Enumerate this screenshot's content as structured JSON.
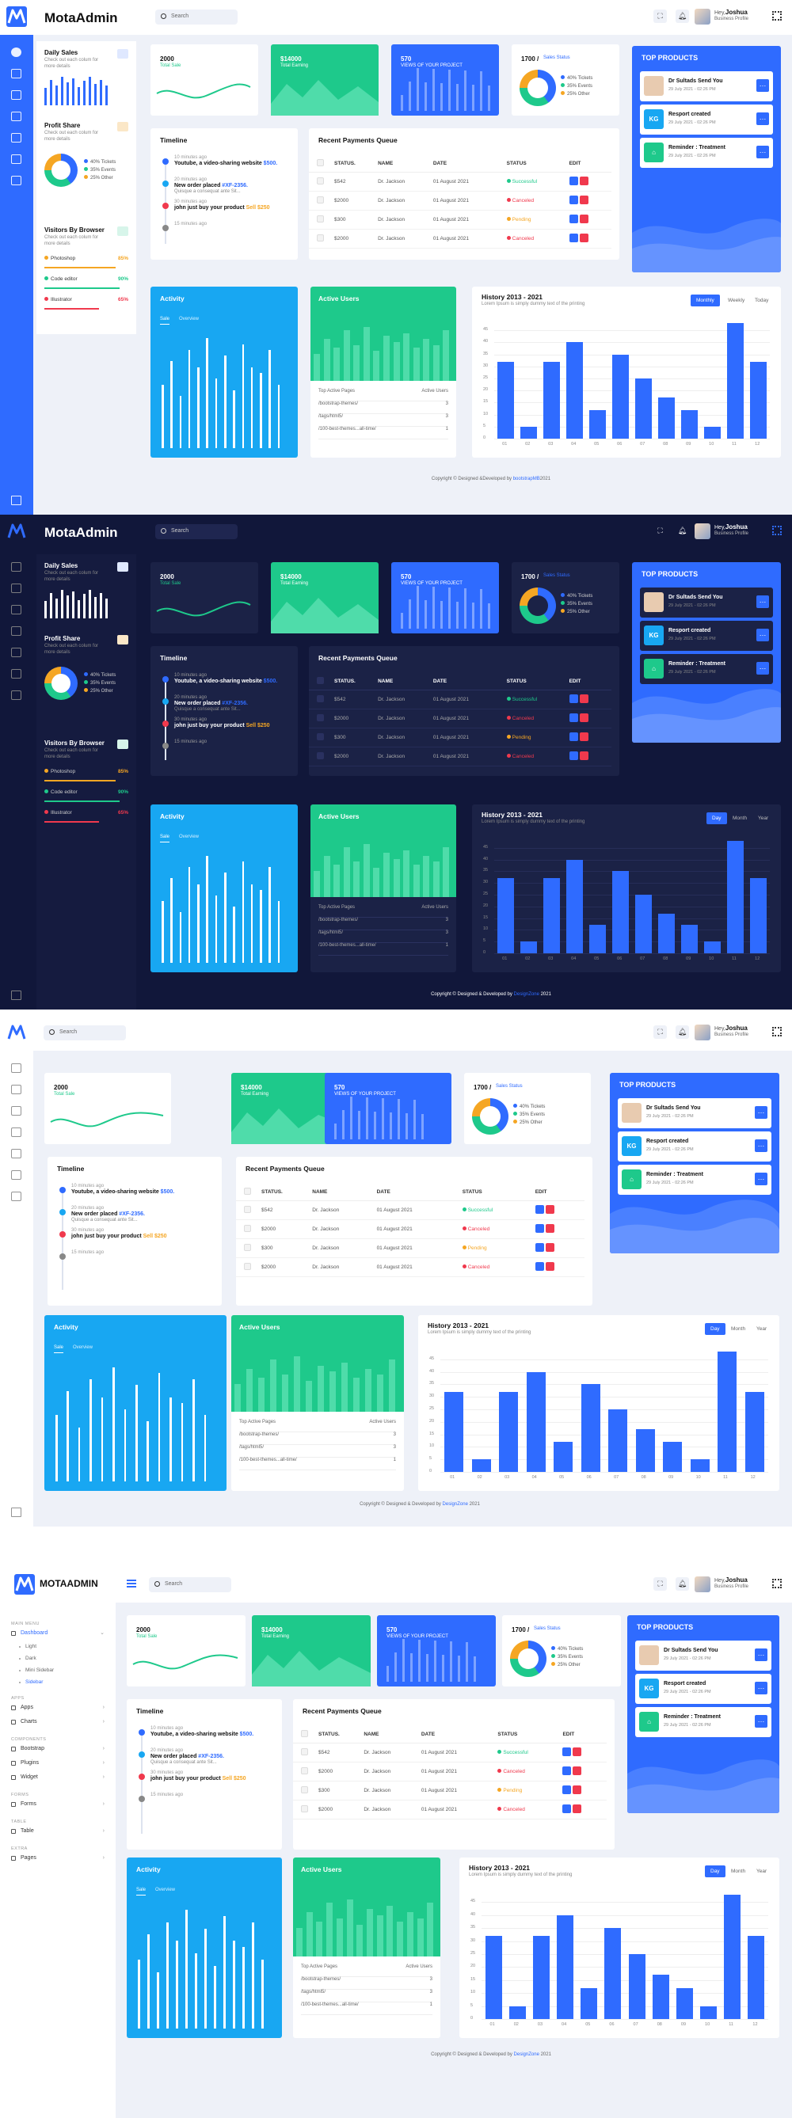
{
  "brand": "MotaAdmin",
  "brand_upper": "MOTAADMIN",
  "search_placeholder": "Search",
  "user": {
    "hey": "Hey,",
    "name": "Joshua",
    "role": "Business Profile"
  },
  "sidebar": {
    "daily_sales": {
      "title": "Daily Sales",
      "sub": "Check out each colum for more details",
      "bars": [
        0.6,
        0.9,
        0.7,
        1.0,
        0.8,
        0.95,
        0.65,
        0.85,
        1.0,
        0.75,
        0.9,
        0.7
      ]
    },
    "profit_share": {
      "title": "Profit Share",
      "sub": "Check out each colum for more details",
      "legend": [
        "40% Tickets",
        "35% Events",
        "25% Other"
      ]
    },
    "visitors": {
      "title": "Visitors By Browser",
      "sub": "Check out each colum for more details",
      "apps": [
        {
          "name": "Photoshop",
          "pct": "85%",
          "color": "#f5a623"
        },
        {
          "name": "Code editor",
          "pct": "90%",
          "color": "#1ec98b"
        },
        {
          "name": "Illustrator",
          "pct": "65%",
          "color": "#f0394d"
        }
      ]
    }
  },
  "stats": [
    {
      "value": "2000",
      "label": "Total Sale"
    },
    {
      "value": "$14000",
      "label": "Total Earning"
    },
    {
      "value": "570",
      "label": "VIEWS OF YOUR PROJECT"
    },
    {
      "value": "1700 /",
      "label": "Sales Status",
      "legend": [
        "40% Tickets",
        "35% Events",
        "25% Other"
      ]
    }
  ],
  "timeline": {
    "title": "Timeline",
    "items": [
      {
        "ago": "10 minutes ago",
        "pre": "Youtube, a video-sharing website ",
        "hl": "$500.",
        "sub": ""
      },
      {
        "ago": "20 minutes ago",
        "pre": "New order placed ",
        "hl": "#XF-2356.",
        "sub": "Quisque a consequat ante Sit..."
      },
      {
        "ago": "30 minutes ago",
        "pre": "john just buy your product ",
        "hl": "Sell $250",
        "sub": ""
      },
      {
        "ago": "15 minutes ago",
        "pre": "",
        "hl": "",
        "sub": ""
      }
    ]
  },
  "payments": {
    "title": "Recent Payments Queue",
    "headers": [
      "STATUS.",
      "NAME",
      "DATE",
      "STATUS",
      "EDIT"
    ],
    "rows": [
      {
        "amount": "$542",
        "name": "Dr. Jackson",
        "date": "01 August 2021",
        "status": "Successful",
        "color": "#1ec98b"
      },
      {
        "amount": "$2000",
        "name": "Dr. Jackson",
        "date": "01 August 2021",
        "status": "Canceled",
        "color": "#f0394d"
      },
      {
        "amount": "$300",
        "name": "Dr. Jackson",
        "date": "01 August 2021",
        "status": "Pending",
        "color": "#f5a623"
      },
      {
        "amount": "$2000",
        "name": "Dr. Jackson",
        "date": "01 August 2021",
        "status": "Canceled",
        "color": "#f0394d"
      }
    ]
  },
  "top_products": {
    "title": "TOP PRODUCTS",
    "items": [
      {
        "name": "Dr Sultads Send You",
        "date": "29 July 2021 - 02:26 PM",
        "badge": "",
        "color": "#e8cbb0"
      },
      {
        "name": "Resport created",
        "date": "29 July 2021 - 02:26 PM",
        "badge": "KG",
        "color": "#18a7f2"
      },
      {
        "name": "Reminder : Treatment",
        "date": "29 July 2021 - 02:26 PM",
        "badge": "⌂",
        "color": "#1ec98b"
      }
    ]
  },
  "activity": {
    "title": "Activity",
    "tabs": [
      "Sale",
      "Overview"
    ],
    "lines": [
      0.55,
      0.75,
      0.45,
      0.85,
      0.7,
      0.95,
      0.6,
      0.8,
      0.5,
      0.9,
      0.7,
      0.65,
      0.85,
      0.55
    ]
  },
  "active_users": {
    "title": "Active Users",
    "bars": [
      0.45,
      0.7,
      0.55,
      0.85,
      0.6,
      0.9,
      0.5,
      0.75,
      0.65,
      0.8,
      0.55,
      0.7,
      0.6,
      0.85
    ],
    "head": [
      "Top Active Pages",
      "Active Users"
    ],
    "rows": [
      [
        "/bootstrap-themes/",
        "3"
      ],
      [
        "/tags/html5/",
        "3"
      ],
      [
        "/100-best-themes...all-time/",
        "1"
      ]
    ]
  },
  "history": {
    "title": "History 2013 - 2021",
    "sub": "Lorem Ipsum is simply dummy text of the printing",
    "buttons_a": [
      "Monthly",
      "Weekly",
      "Today"
    ],
    "buttons_b": [
      "Day",
      "Month",
      "Year"
    ]
  },
  "chart_data": {
    "type": "bar",
    "categories": [
      "01",
      "02",
      "03",
      "04",
      "05",
      "06",
      "07",
      "08",
      "09",
      "10",
      "11",
      "12"
    ],
    "values": [
      32,
      5,
      32,
      40,
      12,
      35,
      25,
      17,
      12,
      5,
      48,
      32
    ],
    "ylim": [
      0,
      50
    ],
    "yticks": [
      0,
      5,
      10,
      15,
      20,
      25,
      30,
      35,
      40,
      45
    ]
  },
  "footer": {
    "a": {
      "pre": "Copyright © Designed &Developed by ",
      "link": "bootstrapMB",
      "post": "2021"
    },
    "b": {
      "pre": "Copyright © Designed & Developed by ",
      "link": "DesignZone",
      "post": " 2021"
    }
  },
  "menu": {
    "groups": [
      {
        "label": "MAIN MENU",
        "items": [
          {
            "label": "Dashboard",
            "on": true,
            "subs": [
              "Light",
              "Dark",
              "Mini Sidebar",
              "Sidebar"
            ]
          }
        ]
      },
      {
        "label": "APPS",
        "items": [
          {
            "label": "Apps"
          },
          {
            "label": "Charts"
          }
        ]
      },
      {
        "label": "COMPONENTS",
        "items": [
          {
            "label": "Bootstrap"
          },
          {
            "label": "Plugins"
          },
          {
            "label": "Widget"
          }
        ]
      },
      {
        "label": "FORMS",
        "items": [
          {
            "label": "Forms"
          }
        ]
      },
      {
        "label": "TABLE",
        "items": [
          {
            "label": "Table"
          }
        ]
      },
      {
        "label": "EXTRA",
        "items": [
          {
            "label": "Pages"
          }
        ]
      }
    ]
  },
  "colors": {
    "blue": "#2f6bff",
    "green": "#1ec98b",
    "cyan": "#18a7f2",
    "navy": "#11173a"
  }
}
